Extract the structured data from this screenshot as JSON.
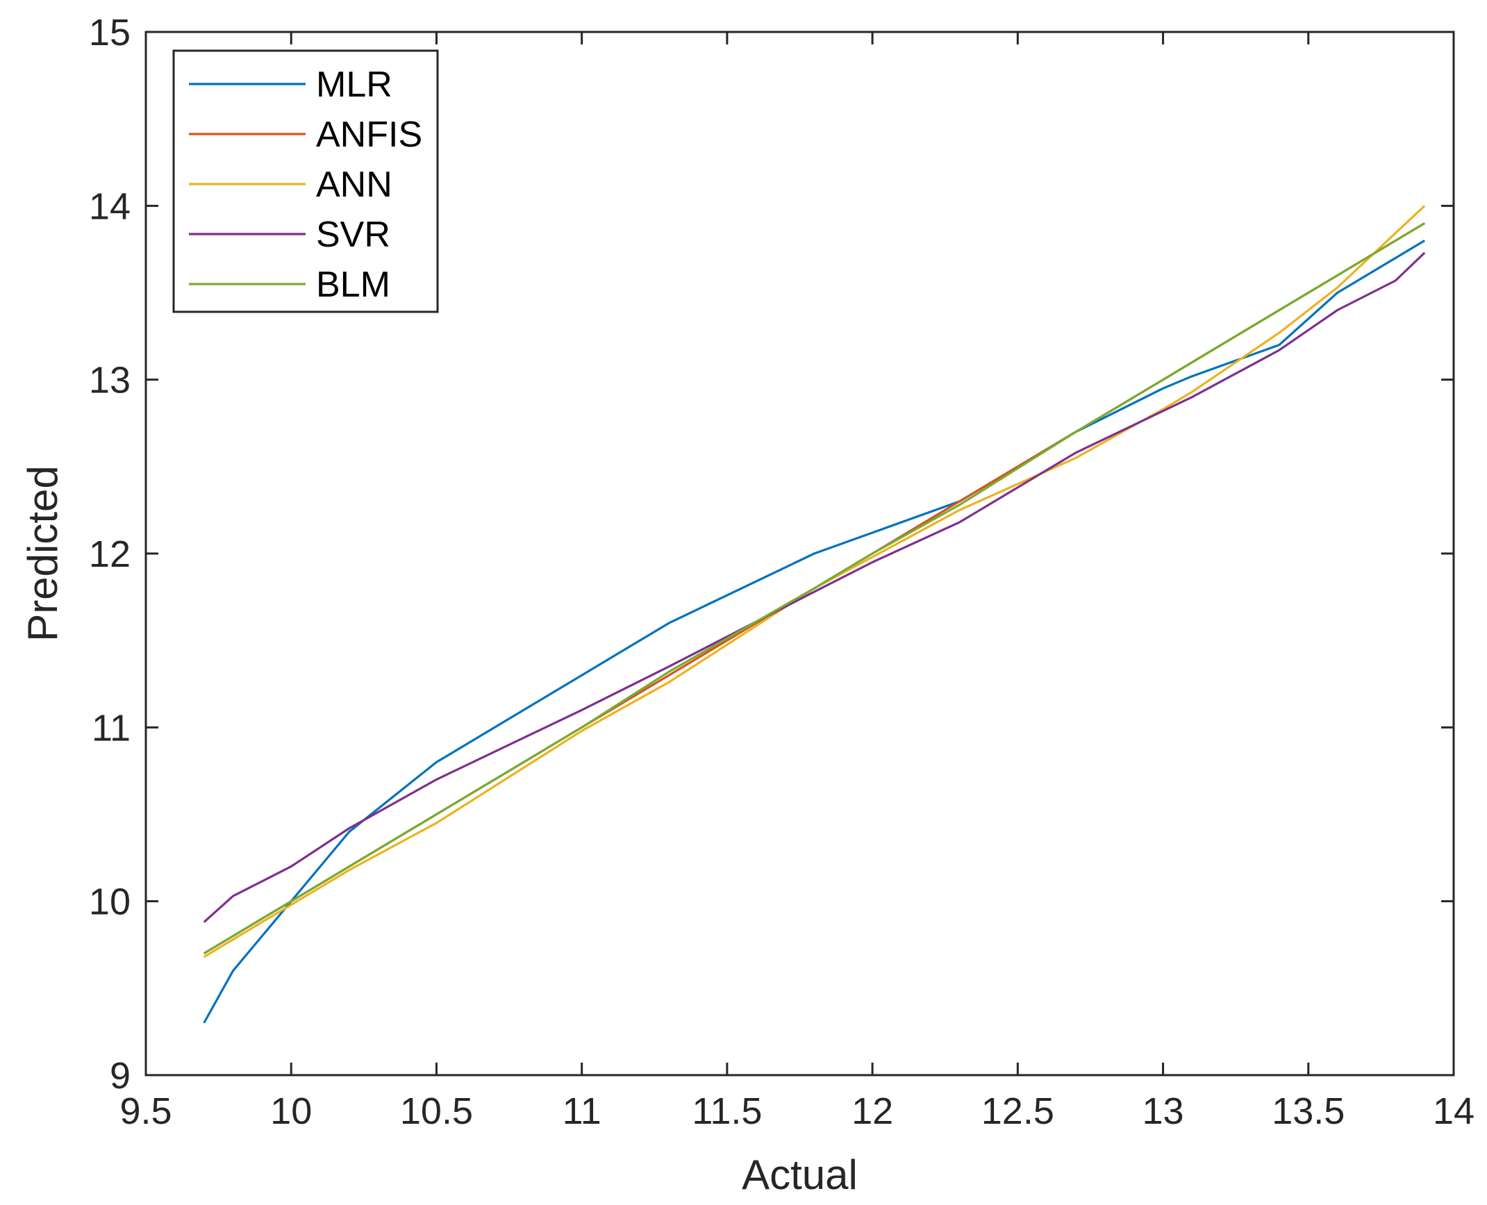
{
  "chart_data": {
    "type": "line",
    "title": "",
    "xlabel": "Actual",
    "ylabel": "Predicted",
    "xlim": [
      9.5,
      14
    ],
    "ylim": [
      9,
      15
    ],
    "xticks": [
      "9.5",
      "10",
      "10.5",
      "11",
      "11.5",
      "12",
      "12.5",
      "13",
      "13.5",
      "14"
    ],
    "yticks": [
      "9",
      "10",
      "11",
      "12",
      "13",
      "14",
      "15"
    ],
    "grid": false,
    "legend_position": "top-left",
    "series": [
      {
        "name": "MLR",
        "color": "#0072BD",
        "x": [
          9.7,
          9.8,
          10.0,
          10.2,
          10.5,
          11.0,
          11.3,
          11.8,
          12.0,
          12.3,
          12.7,
          13.0,
          13.1,
          13.4,
          13.6,
          13.9
        ],
        "y": [
          9.3,
          9.6,
          10.0,
          10.4,
          10.8,
          11.3,
          11.6,
          12.0,
          12.12,
          12.3,
          12.7,
          12.95,
          13.02,
          13.2,
          13.5,
          13.8
        ]
      },
      {
        "name": "ANFIS",
        "color": "#D95319",
        "x": [
          9.7,
          9.8,
          10.0,
          10.2,
          10.5,
          11.0,
          11.3,
          11.8,
          12.0,
          12.3,
          12.7,
          13.0,
          13.1,
          13.4,
          13.6,
          13.9
        ],
        "y": [
          9.7,
          9.8,
          10.0,
          10.2,
          10.5,
          11.0,
          11.3,
          11.8,
          12.0,
          12.3,
          12.7,
          13.0,
          13.1,
          13.4,
          13.6,
          13.9
        ]
      },
      {
        "name": "ANN",
        "color": "#EDB120",
        "x": [
          9.7,
          9.8,
          10.0,
          10.2,
          10.5,
          11.0,
          11.3,
          11.8,
          12.0,
          12.3,
          12.7,
          13.0,
          13.1,
          13.4,
          13.6,
          13.9
        ],
        "y": [
          9.68,
          9.78,
          9.98,
          10.18,
          10.45,
          10.98,
          11.26,
          11.8,
          11.98,
          12.25,
          12.55,
          12.83,
          12.93,
          13.27,
          13.53,
          14.0
        ]
      },
      {
        "name": "SVR",
        "color": "#7E2F8E",
        "x": [
          9.7,
          9.8,
          10.0,
          10.2,
          10.5,
          11.0,
          11.3,
          11.8,
          12.0,
          12.3,
          12.7,
          13.0,
          13.1,
          13.4,
          13.6,
          13.8,
          13.9
        ],
        "y": [
          9.88,
          10.03,
          10.2,
          10.42,
          10.7,
          11.1,
          11.35,
          11.78,
          11.95,
          12.18,
          12.58,
          12.82,
          12.9,
          13.17,
          13.4,
          13.57,
          13.73
        ]
      },
      {
        "name": "BLM",
        "color": "#77AC30",
        "x": [
          9.7,
          9.8,
          10.0,
          10.2,
          10.5,
          11.0,
          11.3,
          11.8,
          12.0,
          12.3,
          12.7,
          13.0,
          13.1,
          13.4,
          13.6,
          13.9
        ],
        "y": [
          9.7,
          9.8,
          10.0,
          10.2,
          10.5,
          11.0,
          11.32,
          11.8,
          12.0,
          12.28,
          12.7,
          13.0,
          13.1,
          13.4,
          13.6,
          13.9
        ]
      }
    ]
  }
}
